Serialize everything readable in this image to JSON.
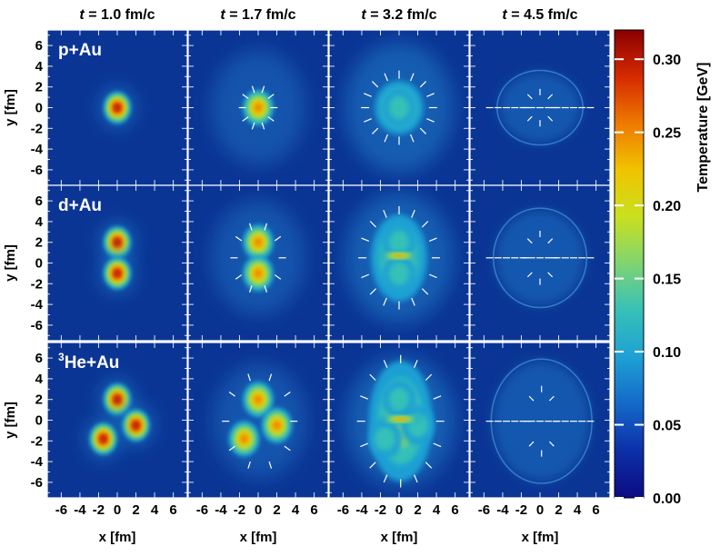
{
  "chart_data": {
    "type": "heatmap",
    "title": "",
    "column_titles": [
      {
        "t_italic": "t",
        "rest": " = 1.0 fm/c"
      },
      {
        "t_italic": "t",
        "rest": " = 1.7 fm/c"
      },
      {
        "t_italic": "t",
        "rest": " = 3.2 fm/c"
      },
      {
        "t_italic": "t",
        "rest": " = 4.5 fm/c"
      }
    ],
    "times_fm_c": [
      1.0,
      1.7,
      3.2,
      4.5
    ],
    "rows": [
      {
        "system": "p+Au",
        "sup": "",
        "base": "p+Au",
        "centers_fm": [
          [
            0,
            0
          ]
        ]
      },
      {
        "system": "d+Au",
        "sup": "",
        "base": "d+Au",
        "centers_fm": [
          [
            0,
            2
          ],
          [
            0,
            -1
          ]
        ]
      },
      {
        "system": "3He+Au",
        "sup": "3",
        "base": "He+Au",
        "centers_fm": [
          [
            0,
            2
          ],
          [
            2,
            -0.5
          ],
          [
            -1.5,
            -1.8
          ]
        ]
      }
    ],
    "xlabel": "x [fm]",
    "ylabel": "y [fm]",
    "xlim": [
      -7.5,
      7.5
    ],
    "ylim": [
      -7.5,
      7.5
    ],
    "x_ticks": [
      "-6",
      "-4",
      "-2",
      "0",
      "2",
      "4",
      "6"
    ],
    "y_ticks": [
      "6",
      "4",
      "2",
      "0",
      "-2",
      "-4",
      "-6"
    ],
    "colorbar": {
      "label": "Temperature [GeV]",
      "range": [
        0,
        0.32
      ],
      "ticks": [
        "0.30",
        "0.25",
        "0.20",
        "0.15",
        "0.10",
        "0.05",
        "0.00"
      ],
      "stops": [
        "#0b0b82",
        "#0d2fa8",
        "#1468c8",
        "#1ea0d4",
        "#36c0b8",
        "#7fd472",
        "#c9e01f",
        "#f0c400",
        "#ee7a00",
        "#d42a00",
        "#8a0000"
      ]
    },
    "background_color": "#0b3595"
  }
}
